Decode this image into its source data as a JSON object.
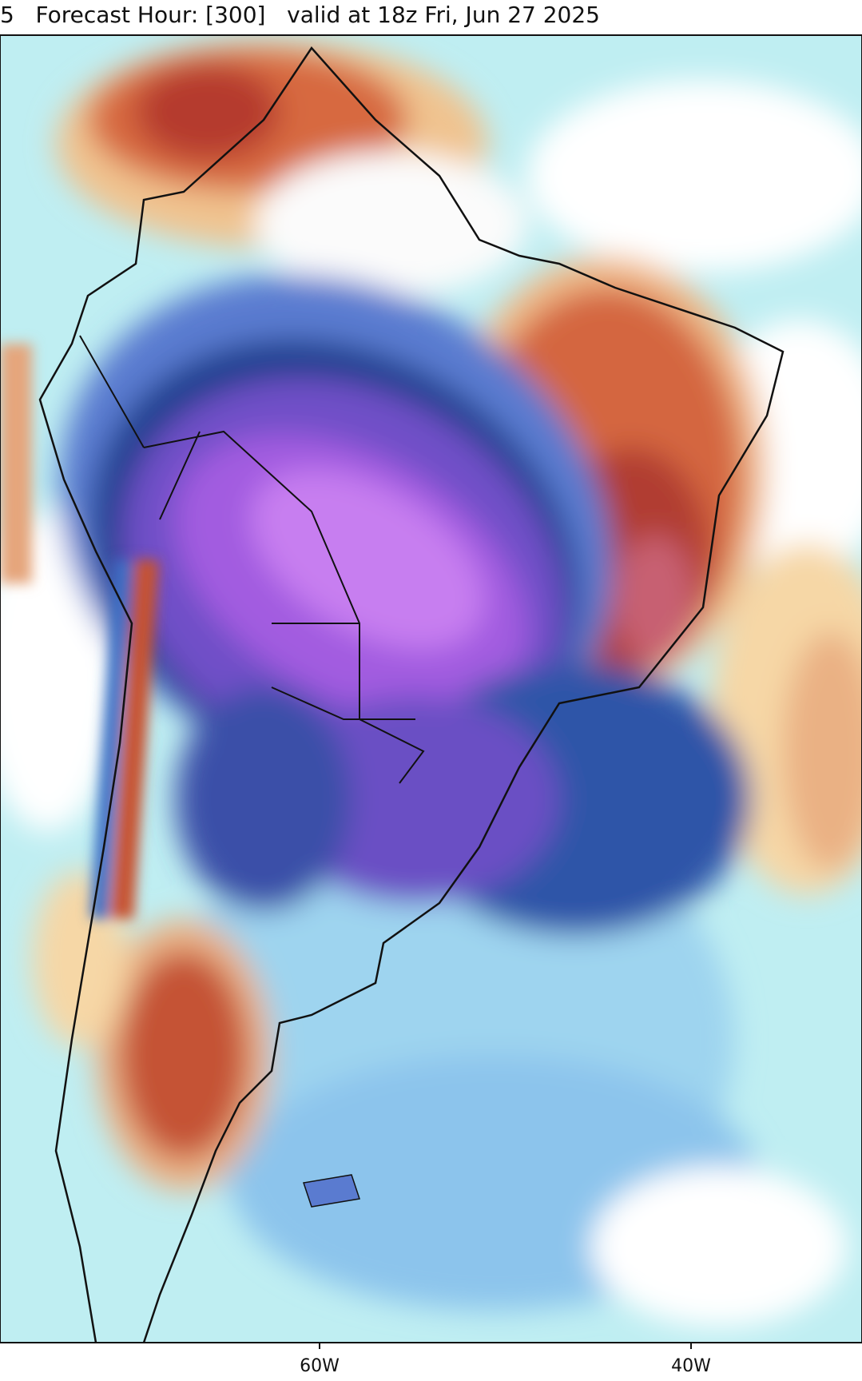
{
  "header": {
    "title": "5   Forecast Hour: [300]   valid at 18z Fri, Jun 27 2025"
  },
  "axis": {
    "longitude_labels": [
      "60W",
      "40W"
    ]
  }
}
